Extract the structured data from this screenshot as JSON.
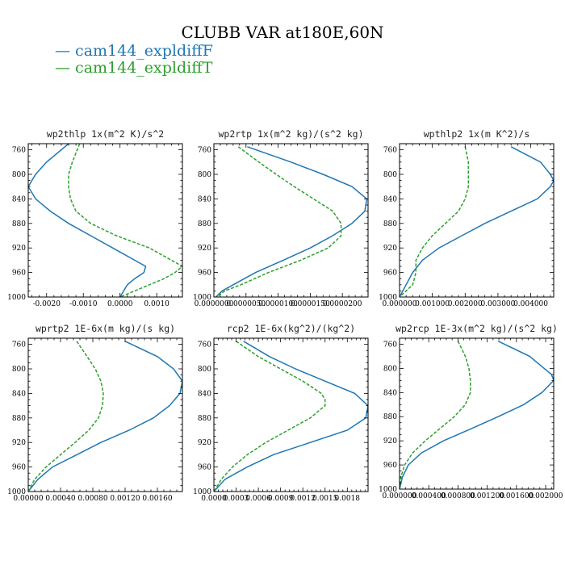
{
  "title": "CLUBB VAR at180E,60N",
  "legend": [
    {
      "label": "cam144_expldiffF",
      "color": "#1f77b4",
      "dash": "solid"
    },
    {
      "label": "cam144_expldiffT",
      "color": "#2ca02c",
      "dash": "dashed"
    }
  ],
  "chart_data": [
    {
      "type": "line",
      "title": "wp2thlp  1x(m^2 K)/s^2",
      "xlim": [
        -0.0025,
        0.0017
      ],
      "ylim": [
        1000,
        750
      ],
      "xticks": [
        "-0.0020",
        "-0.0010",
        "0.0000",
        "0.0010"
      ],
      "xtick_values": [
        -0.002,
        -0.001,
        0.0,
        0.001
      ],
      "yticks": [
        "760",
        "800",
        "840",
        "880",
        "920",
        "960",
        "1000"
      ],
      "ytick_values": [
        760,
        800,
        840,
        880,
        920,
        960,
        1000
      ],
      "series": [
        {
          "name": "cam144_expldiffF",
          "y": [
            750,
            780,
            800,
            820,
            840,
            860,
            880,
            900,
            920,
            940,
            950,
            960,
            970,
            980,
            990,
            1000
          ],
          "x": [
            -0.0014,
            -0.002,
            -0.0023,
            -0.0025,
            -0.0023,
            -0.0019,
            -0.0014,
            -0.0008,
            -0.0002,
            0.0004,
            0.0007,
            0.00065,
            0.0004,
            0.0002,
            0.0001,
            0.0
          ]
        },
        {
          "name": "cam144_expldiffT",
          "y": [
            750,
            780,
            800,
            820,
            840,
            860,
            880,
            900,
            920,
            940,
            950,
            960,
            970,
            980,
            990,
            1000
          ],
          "x": [
            -0.0011,
            -0.0013,
            -0.0014,
            -0.0014,
            -0.00135,
            -0.0012,
            -0.0008,
            -0.0001,
            0.0008,
            0.0014,
            0.0017,
            0.0015,
            0.0012,
            0.0008,
            0.0004,
            0.0
          ]
        }
      ]
    },
    {
      "type": "line",
      "title": "wp2rtp  1x(m^2 kg)/(s^2 kg)",
      "xlim": [
        0,
        2.4e-05
      ],
      "ylim": [
        1000,
        750
      ],
      "xticks": [
        "0.0000000",
        "0.0000050",
        "0.0000100",
        "0.0000150",
        "0.0000200"
      ],
      "xtick_values": [
        0,
        5e-06,
        1e-05,
        1.5e-05,
        2e-05
      ],
      "yticks": [
        "760",
        "800",
        "840",
        "880",
        "920",
        "960",
        "1000"
      ],
      "ytick_values": [
        760,
        800,
        840,
        880,
        920,
        960,
        1000
      ],
      "series": [
        {
          "name": "cam144_expldiffF",
          "y": [
            755,
            780,
            800,
            820,
            840,
            860,
            880,
            900,
            920,
            940,
            960,
            980,
            990,
            1000
          ],
          "x": [
            5.2e-06,
            1.2e-05,
            1.7e-05,
            2.15e-05,
            2.38e-05,
            2.35e-05,
            2.15e-05,
            1.85e-05,
            1.5e-05,
            1.08e-05,
            6.5e-06,
            3e-06,
            1.3e-06,
            3e-07
          ]
        },
        {
          "name": "cam144_expldiffT",
          "y": [
            755,
            780,
            800,
            820,
            840,
            860,
            880,
            900,
            920,
            940,
            960,
            980,
            990,
            1000
          ],
          "x": [
            3.8e-06,
            7e-06,
            9.7e-06,
            1.25e-05,
            1.55e-05,
            1.85e-05,
            1.98e-05,
            1.98e-05,
            1.78e-05,
            1.35e-05,
            8.5e-06,
            4.2e-06,
            1.7e-06,
            4e-07
          ]
        }
      ]
    },
    {
      "type": "line",
      "title": "wpthlp2  1x(m K^2)/s",
      "xlim": [
        0,
        0.0047
      ],
      "ylim": [
        1000,
        750
      ],
      "xticks": [
        "0.000000",
        "0.001000",
        "0.002000",
        "0.003000",
        "0.004000"
      ],
      "xtick_values": [
        0,
        0.001,
        0.002,
        0.003,
        0.004
      ],
      "yticks": [
        "760",
        "800",
        "840",
        "880",
        "920",
        "960",
        "1000"
      ],
      "ytick_values": [
        760,
        800,
        840,
        880,
        920,
        960,
        1000
      ],
      "series": [
        {
          "name": "cam144_expldiffF",
          "y": [
            755,
            780,
            800,
            810,
            820,
            840,
            860,
            880,
            900,
            920,
            940,
            960,
            980,
            990,
            1000
          ],
          "x": [
            0.0034,
            0.0043,
            0.0046,
            0.0047,
            0.0046,
            0.0042,
            0.0034,
            0.0026,
            0.0019,
            0.0012,
            0.0007,
            0.0004,
            0.0002,
            0.0001,
            0.0
          ]
        },
        {
          "name": "cam144_expldiffT",
          "y": [
            755,
            780,
            800,
            820,
            840,
            860,
            880,
            900,
            920,
            940,
            960,
            980,
            990,
            1000
          ],
          "x": [
            0.002,
            0.0021,
            0.0021,
            0.0021,
            0.002,
            0.0018,
            0.0014,
            0.001,
            0.0007,
            0.0005,
            0.0005,
            0.0004,
            0.0002,
            0.0
          ]
        }
      ]
    },
    {
      "type": "line",
      "title": "wprtp2  1E-6x(m kg)/(s kg)",
      "xlim": [
        0,
        0.00191
      ],
      "ylim": [
        1000,
        750
      ],
      "xticks": [
        "0.00000",
        "0.00040",
        "0.00080",
        "0.00120",
        "0.00160"
      ],
      "xtick_values": [
        0,
        0.0004,
        0.0008,
        0.0012,
        0.0016
      ],
      "yticks": [
        "760",
        "800",
        "840",
        "880",
        "920",
        "960",
        "1000"
      ],
      "ytick_values": [
        760,
        800,
        840,
        880,
        920,
        960,
        1000
      ],
      "series": [
        {
          "name": "cam144_expldiffF",
          "y": [
            755,
            780,
            800,
            820,
            840,
            860,
            880,
            900,
            920,
            940,
            960,
            980,
            1000
          ],
          "x": [
            0.0012,
            0.0016,
            0.0018,
            0.00191,
            0.00188,
            0.00175,
            0.00155,
            0.00125,
            0.0009,
            0.0006,
            0.0003,
            0.00012,
            0.0
          ]
        },
        {
          "name": "cam144_expldiffT",
          "y": [
            755,
            780,
            800,
            820,
            840,
            860,
            880,
            900,
            920,
            940,
            960,
            980,
            1000
          ],
          "x": [
            0.0006,
            0.00073,
            0.00083,
            0.0009,
            0.00093,
            0.00092,
            0.00087,
            0.00075,
            0.00058,
            0.0004,
            0.00022,
            8e-05,
            0.0
          ]
        }
      ]
    },
    {
      "type": "line",
      "title": "rcp2  1E-6x(kg^2)/(kg^2)",
      "xlim": [
        0,
        0.00208
      ],
      "ylim": [
        1000,
        750
      ],
      "xticks": [
        "0.0000",
        "0.0003",
        "0.0006",
        "0.0009",
        "0.0012",
        "0.0015",
        "0.0018"
      ],
      "xtick_values": [
        0,
        0.0003,
        0.0006,
        0.0009,
        0.0012,
        0.0015,
        0.0018
      ],
      "yticks": [
        "760",
        "800",
        "840",
        "880",
        "920",
        "960",
        "1000"
      ],
      "ytick_values": [
        760,
        800,
        840,
        880,
        920,
        960,
        1000
      ],
      "series": [
        {
          "name": "cam144_expldiffF",
          "y": [
            755,
            780,
            800,
            820,
            840,
            860,
            880,
            900,
            920,
            940,
            960,
            980,
            1000
          ],
          "x": [
            0.0004,
            0.00075,
            0.0011,
            0.0015,
            0.0019,
            0.00208,
            0.00205,
            0.0018,
            0.0013,
            0.0008,
            0.00045,
            0.00015,
            0.0
          ]
        },
        {
          "name": "cam144_expldiffT",
          "y": [
            755,
            780,
            800,
            820,
            840,
            850,
            860,
            880,
            900,
            920,
            940,
            960,
            980,
            1000
          ],
          "x": [
            0.0003,
            0.0006,
            0.0009,
            0.0012,
            0.00145,
            0.0015,
            0.0015,
            0.0013,
            0.001,
            0.0007,
            0.00045,
            0.00025,
            0.0001,
            0.0
          ]
        }
      ]
    },
    {
      "type": "line",
      "title": "wp2rcp  1E-3x(m^2 kg)/(s^2 kg)",
      "xlim": [
        0,
        0.00211
      ],
      "ylim": [
        1000,
        750
      ],
      "xticks": [
        "0.000000",
        "0.000400",
        "0.000800",
        "0.001200",
        "0.001600",
        "0.002000"
      ],
      "xtick_values": [
        0,
        0.0004,
        0.0008,
        0.0012,
        0.0016,
        0.002
      ],
      "yticks": [
        "760",
        "800",
        "840",
        "880",
        "920",
        "960",
        "1000"
      ],
      "ytick_values": [
        760,
        800,
        840,
        880,
        920,
        960,
        1000
      ],
      "series": [
        {
          "name": "cam144_expldiffF",
          "y": [
            755,
            780,
            800,
            810,
            820,
            840,
            860,
            880,
            900,
            920,
            940,
            960,
            980,
            1000
          ],
          "x": [
            0.00135,
            0.00178,
            0.00198,
            0.00208,
            0.00211,
            0.00195,
            0.0017,
            0.00135,
            0.00098,
            0.0006,
            0.0003,
            0.00012,
            4e-05,
            0.0
          ]
        },
        {
          "name": "cam144_expldiffT",
          "y": [
            755,
            780,
            800,
            820,
            840,
            860,
            880,
            900,
            920,
            940,
            960,
            980,
            1000
          ],
          "x": [
            0.0008,
            0.0009,
            0.00095,
            0.00097,
            0.00097,
            0.0009,
            0.00075,
            0.00055,
            0.00035,
            0.00018,
            7e-05,
            2e-05,
            0.0
          ]
        }
      ]
    }
  ]
}
